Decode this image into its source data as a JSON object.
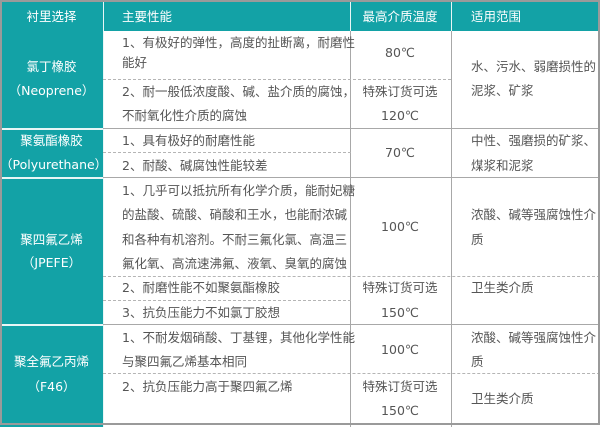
{
  "colors": {
    "header_bg": "#13a2a6",
    "text": "#555555",
    "border": "#a8a8a8"
  },
  "header": [
    "衬里选择",
    "主要性能",
    "最高介质温度",
    "适用范围"
  ],
  "rows": [
    {
      "lining": [
        "氯丁橡胶",
        "（Neoprene）"
      ],
      "properties": [
        [
          "1、有极好的弹性，高度的扯断离，耐磨性",
          "能好"
        ],
        [
          "2、耐一般低浓度酸、碱、盐介质的腐蚀，",
          "不耐氧化性介质的腐蚀"
        ]
      ],
      "temperature": [
        "80℃",
        "特殊订货可选",
        "120℃"
      ],
      "application": [
        "水、污水、弱磨损性的",
        "泥浆、矿浆"
      ]
    },
    {
      "lining": [
        "聚氨酯橡胶",
        "（Polyurethane）"
      ],
      "properties": [
        [
          "1、具有极好的耐磨性能"
        ],
        [
          "2、耐酸、碱腐蚀性能较差"
        ]
      ],
      "temperature": [
        "70℃"
      ],
      "application": [
        "中性、强磨损的矿浆、",
        "煤浆和泥浆"
      ]
    },
    {
      "lining": [
        "聚四氟乙烯",
        "（JPEFE）"
      ],
      "properties": [
        [
          "1、几乎可以抵抗所有化学介质，能耐妃糖",
          "的盐酸、硫酸、硝酸和王水，也能耐浓碱",
          "和各种有机溶剂。不耐三氟化氯、高温三",
          "氟化氧、高流速沸氟、液氧、臭氧的腐蚀"
        ],
        [
          "2、耐磨性能不如聚氨酯橡胶"
        ],
        [
          "3、抗负压能力不如氯丁胶想"
        ]
      ],
      "temperature": [
        "100℃",
        "特殊订货可选",
        "150℃"
      ],
      "application": [
        "浓酸、碱等强腐蚀性介",
        "质",
        "卫生类介质"
      ]
    },
    {
      "lining": [
        "聚全氟乙丙烯",
        "（F46）"
      ],
      "properties": [
        [
          "1、不耐发烟硝酸、丁基锂，其他化学性能",
          "与聚四氟乙烯基本相同"
        ],
        [
          "2、抗负压能力高于聚四氟乙烯"
        ]
      ],
      "temperature": [
        "100℃",
        "特殊订货可选",
        "150℃"
      ],
      "application": [
        "浓酸、碱等强腐蚀性介",
        "质",
        "卫生类介质"
      ]
    }
  ]
}
